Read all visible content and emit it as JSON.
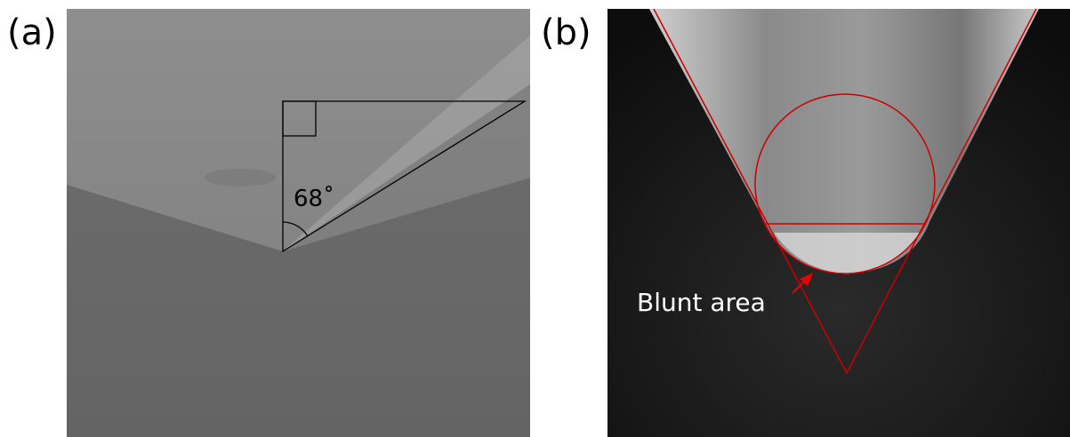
{
  "panels": [
    {
      "label": "(a)",
      "annotation": "68˚"
    },
    {
      "label": "(b)",
      "annotation": "Blunt area"
    }
  ]
}
